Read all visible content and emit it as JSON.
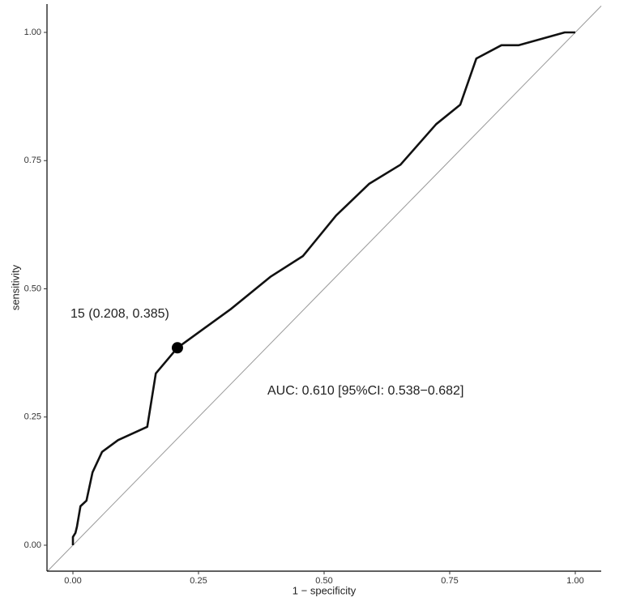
{
  "chart_data": {
    "type": "line",
    "x_label": "1 − specificity",
    "y_label": "sensitivity",
    "xlim": [
      -0.0516,
      1.0516
    ],
    "ylim": [
      -0.0506,
      1.0553
    ],
    "xticks": [
      {
        "value": 0,
        "label": "0.00"
      },
      {
        "value": 0.25,
        "label": "0.25"
      },
      {
        "value": 0.5,
        "label": "0.50"
      },
      {
        "value": 0.75,
        "label": "0.75"
      },
      {
        "value": 1,
        "label": "1.00"
      }
    ],
    "yticks": [
      {
        "value": 0,
        "label": "0.00"
      },
      {
        "value": 0.25,
        "label": "0.25"
      },
      {
        "value": 0.5,
        "label": "0.50"
      },
      {
        "value": 0.75,
        "label": "0.75"
      },
      {
        "value": 1,
        "label": "1.00"
      }
    ],
    "grid": false,
    "diagonal": true,
    "diagonal_color": "#999999",
    "series": [
      {
        "color": "#111111",
        "x": [
          0,
          0,
          0.005,
          0.008,
          0.015,
          0.027,
          0.039,
          0.058,
          0.09,
          0.148,
          0.165,
          0.208,
          0.315,
          0.394,
          0.458,
          0.524,
          0.59,
          0.652,
          0.723,
          0.771,
          0.803,
          0.853,
          0.887,
          0.979,
          1
        ],
        "values": [
          0,
          0.016,
          0.024,
          0.036,
          0.076,
          0.087,
          0.142,
          0.182,
          0.205,
          0.231,
          0.335,
          0.385,
          0.461,
          0.524,
          0.564,
          0.643,
          0.705,
          0.742,
          0.821,
          0.859,
          0.949,
          0.975,
          0.975,
          1,
          1
        ]
      }
    ],
    "point": {
      "x": 0.208,
      "y": 0.385,
      "label": "15 (0.208, 0.385)"
    },
    "auc_text": "AUC: 0.610 [95%CI: 0.538−0.682]"
  }
}
